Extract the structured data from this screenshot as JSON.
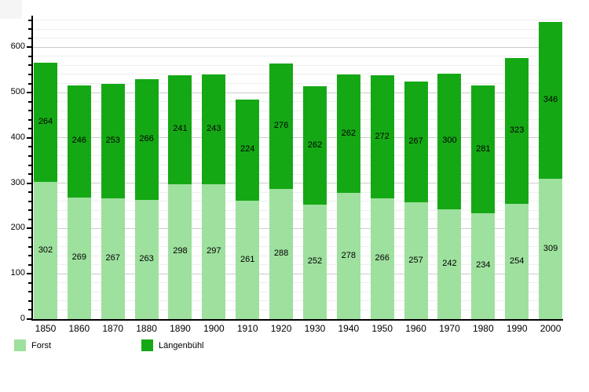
{
  "chart_data": {
    "type": "bar",
    "stacked": true,
    "title": "",
    "xlabel": "",
    "ylabel": "",
    "categories": [
      "1850",
      "1860",
      "1870",
      "1880",
      "1890",
      "1900",
      "1910",
      "1920",
      "1930",
      "1940",
      "1950",
      "1960",
      "1970",
      "1980",
      "1990",
      "2000"
    ],
    "series": [
      {
        "name": "Forst",
        "color": "#9ee09e",
        "values": [
          302,
          269,
          267,
          263,
          298,
          297,
          261,
          288,
          252,
          278,
          266,
          257,
          242,
          234,
          254,
          309
        ]
      },
      {
        "name": "Längenbühl",
        "color": "#15a815",
        "values": [
          264,
          246,
          253,
          266,
          241,
          243,
          224,
          276,
          262,
          262,
          272,
          267,
          300,
          281,
          323,
          346
        ]
      }
    ],
    "totals": [
      566,
      515,
      520,
      529,
      539,
      540,
      485,
      564,
      514,
      540,
      538,
      524,
      542,
      515,
      577,
      655
    ],
    "ylim": [
      0,
      661
    ],
    "y_ticks": [
      0,
      100,
      200,
      300,
      400,
      500,
      600
    ],
    "grid": {
      "minor_step": 20,
      "major_step": 100,
      "on": true
    },
    "value_labels": true,
    "legend_position": "bottom"
  },
  "legend": {
    "items": [
      {
        "label": "Forst",
        "color": "#9ee09e"
      },
      {
        "label": "Längenbühl",
        "color": "#15a815"
      }
    ]
  }
}
